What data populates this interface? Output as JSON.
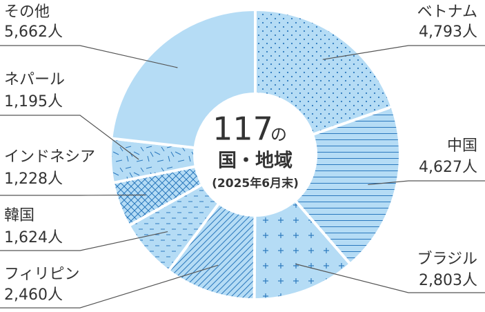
{
  "chart_data": {
    "type": "donut",
    "center_texts": [
      "117",
      "の",
      "国・地域",
      "(2025年6月末)"
    ],
    "categories": [
      "ベトナム",
      "中国",
      "ブラジル",
      "フィリピン",
      "韓国",
      "インドネシア",
      "ネパール",
      "その他"
    ],
    "values": [
      4793,
      4627,
      2803,
      2460,
      1624,
      1228,
      1195,
      5662
    ],
    "value_labels": [
      "4,793人",
      "4,627人",
      "2,803人",
      "2,460人",
      "1,624人",
      "1,228人",
      "1,195人",
      "5,662人"
    ],
    "patterns": [
      "dots",
      "hlines",
      "plus",
      "diagonal",
      "dashes",
      "crosshatch",
      "scatter",
      "solid"
    ],
    "color": "#b5dcf5",
    "pattern_color": "#2a78bd"
  }
}
